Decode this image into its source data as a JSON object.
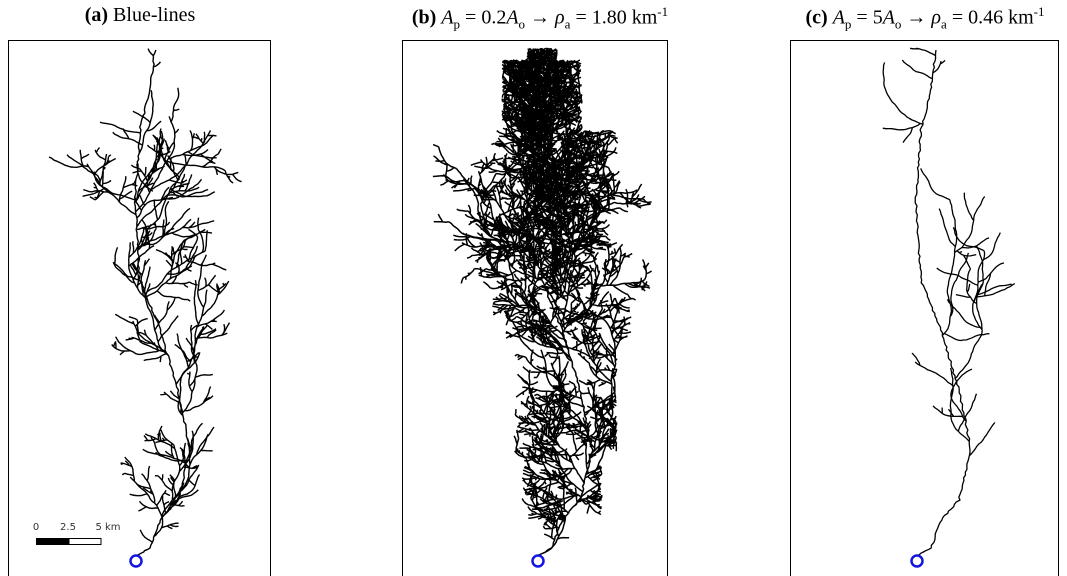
{
  "panels": [
    {
      "label": "(a)",
      "title": [
        "Blue-lines"
      ]
    },
    {
      "label": "(b)",
      "title": [
        "A",
        "p",
        " = 0.2",
        "A",
        "o",
        " → ",
        "ρ",
        "a",
        " = 1.80 km",
        "-1"
      ]
    },
    {
      "label": "(c)",
      "title": [
        "A",
        "p",
        " = 5",
        "A",
        "o",
        " → ",
        "ρ",
        "a",
        " = 0.46 km",
        "-1"
      ]
    }
  ],
  "scale_bar": {
    "labels": [
      "0",
      "2.5",
      "5 km"
    ]
  }
}
